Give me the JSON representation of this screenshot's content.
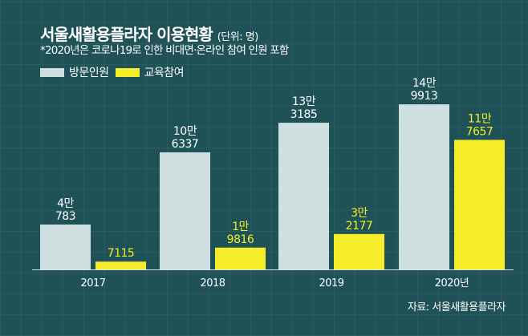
{
  "chart_data": {
    "type": "bar",
    "title": "서울새활용플라자 이용현황",
    "unit": "(단위: 명)",
    "subtitle": "*2020년은 코로나19로 인한 비대면·온라인 참여 인원 포함",
    "categories": [
      "2017",
      "2018",
      "2019",
      "2020년"
    ],
    "series": [
      {
        "name": "방문인원",
        "color": "#cfe0e0",
        "labelColor": "#ffffff",
        "values": [
          40783,
          106337,
          133185,
          149913
        ],
        "labels": [
          [
            "4만",
            "783"
          ],
          [
            "10만",
            "6337"
          ],
          [
            "13만",
            "3185"
          ],
          [
            "14만",
            "9913"
          ]
        ]
      },
      {
        "name": "교육참여",
        "color": "#f5ec2a",
        "labelColor": "#f5ec2a",
        "values": [
          7115,
          19816,
          32177,
          117657
        ],
        "labels": [
          [
            "",
            "7115"
          ],
          [
            "1만",
            "9816"
          ],
          [
            "3만",
            "2177"
          ],
          [
            "11만",
            "7657"
          ]
        ]
      }
    ],
    "ylim": [
      0,
      150000
    ],
    "grid": false,
    "legend": "top-left",
    "source": "자료: 서울새활용플라자"
  }
}
